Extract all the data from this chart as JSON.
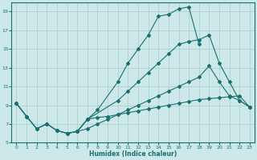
{
  "xlabel": "Humidex (Indice chaleur)",
  "ylabel": "",
  "bg_color": "#cce8e8",
  "line_color": "#1a7070",
  "grid_color": "#aacccc",
  "xlim": [
    -0.5,
    23.5
  ],
  "ylim": [
    5,
    20
  ],
  "yticks": [
    5,
    7,
    9,
    11,
    13,
    15,
    17,
    19
  ],
  "xticks": [
    0,
    1,
    2,
    3,
    4,
    5,
    6,
    7,
    8,
    9,
    10,
    11,
    12,
    13,
    14,
    15,
    16,
    17,
    18,
    19,
    20,
    21,
    22,
    23
  ],
  "line1_x": [
    0,
    1,
    2,
    3,
    4,
    5,
    6,
    7,
    8,
    10,
    11,
    12,
    13,
    14,
    15,
    16,
    17,
    18
  ],
  "line1_y": [
    9.2,
    7.8,
    6.5,
    7.0,
    6.3,
    6.0,
    6.2,
    7.5,
    8.5,
    11.5,
    13.5,
    15.0,
    16.5,
    18.5,
    18.7,
    19.3,
    19.5,
    15.5
  ],
  "line2_x": [
    0,
    1,
    2,
    3,
    4,
    5,
    6,
    7,
    10,
    11,
    12,
    13,
    14,
    15,
    16,
    17,
    18,
    19,
    20,
    21,
    22,
    23
  ],
  "line2_y": [
    9.2,
    7.8,
    6.5,
    7.0,
    6.3,
    6.0,
    6.2,
    7.5,
    9.5,
    10.5,
    11.5,
    12.5,
    13.5,
    14.5,
    15.5,
    15.8,
    16.0,
    16.5,
    13.5,
    11.5,
    9.5,
    8.8
  ],
  "line3_x": [
    0,
    1,
    2,
    3,
    4,
    5,
    6,
    7,
    7,
    8,
    9,
    10,
    11,
    12,
    13,
    14,
    15,
    16,
    17,
    18,
    19,
    20,
    21,
    22,
    23
  ],
  "line3_y": [
    9.2,
    7.8,
    6.5,
    7.0,
    6.3,
    6.0,
    6.2,
    7.5,
    7.5,
    7.7,
    7.8,
    8.0,
    8.2,
    8.4,
    8.6,
    8.8,
    9.0,
    9.2,
    9.4,
    9.6,
    9.7,
    9.8,
    9.9,
    10.0,
    8.8
  ],
  "line4_x": [
    6,
    7,
    8,
    9,
    10,
    11,
    12,
    13,
    14,
    15,
    16,
    17,
    18,
    19,
    20,
    21,
    22,
    23
  ],
  "line4_y": [
    6.2,
    6.5,
    7.0,
    7.5,
    8.0,
    8.5,
    9.0,
    9.5,
    10.0,
    10.5,
    11.0,
    11.5,
    12.0,
    13.2,
    11.5,
    10.0,
    9.5,
    8.8
  ]
}
